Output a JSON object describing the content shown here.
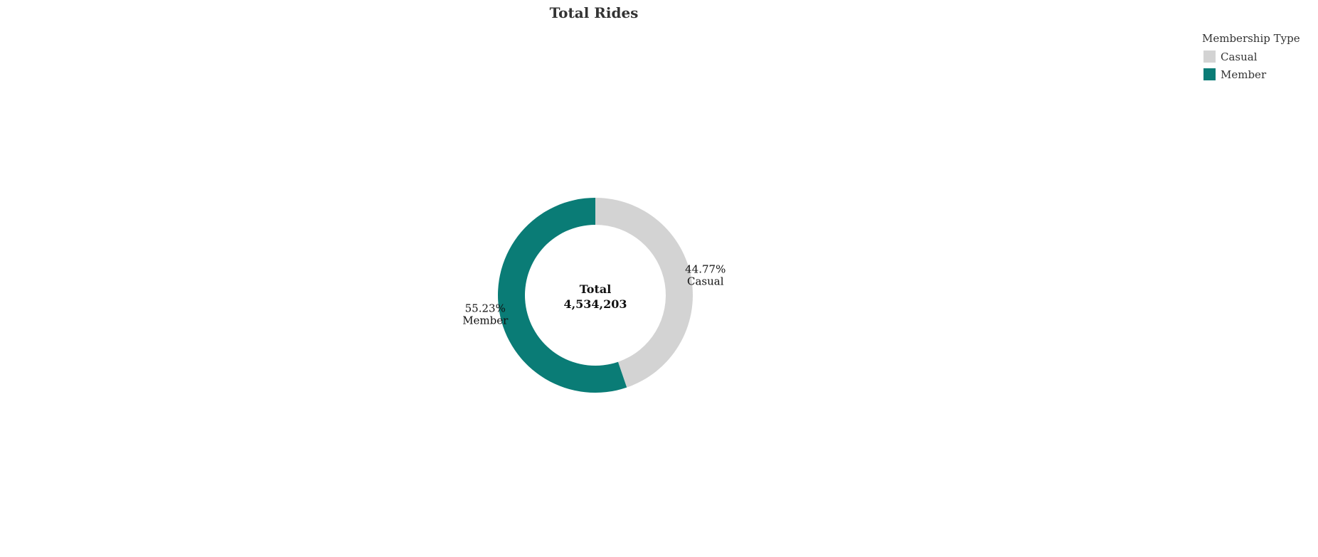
{
  "chart_data": {
    "type": "pie",
    "variant": "donut",
    "title": "Total Rides",
    "legend": {
      "title": "Membership Type",
      "placement": "top-right",
      "entries": [
        {
          "label": "Casual",
          "color": "#d3d3d3"
        },
        {
          "label": "Member",
          "color": "#0a7c76"
        }
      ]
    },
    "slices": [
      {
        "category": "Casual",
        "percent": 44.77,
        "percent_label": "44.77%",
        "color": "#d3d3d3"
      },
      {
        "category": "Member",
        "percent": 55.23,
        "percent_label": "55.23%",
        "color": "#0a7c76"
      }
    ],
    "center": {
      "label": "Total",
      "value": "4,534,203"
    }
  }
}
